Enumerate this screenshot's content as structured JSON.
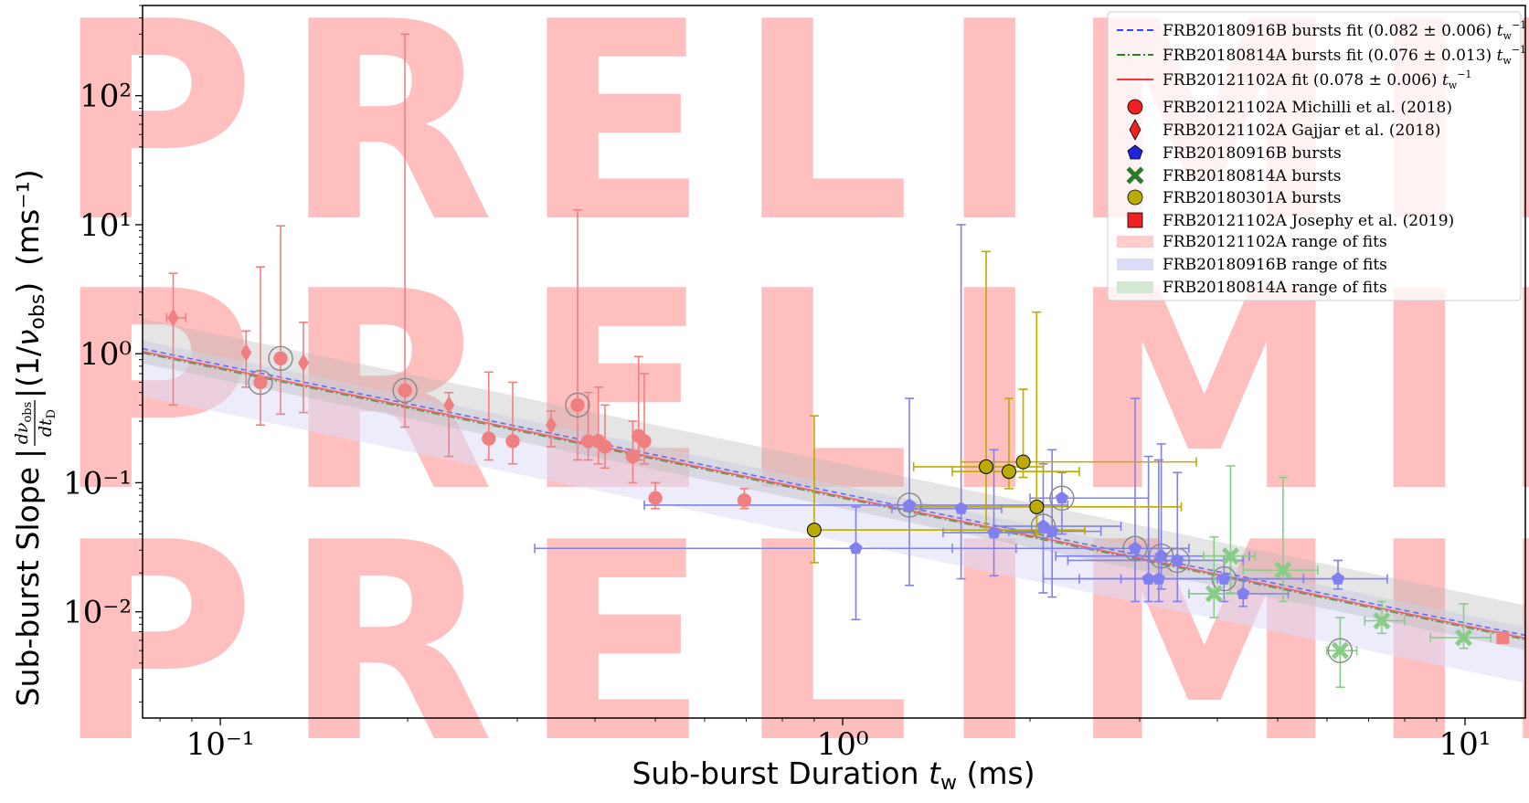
{
  "watermark": {
    "line1": "PRELIMINARY",
    "line2": "PRELIMINARY",
    "line3": "PRELIMINARY"
  },
  "chart_data": {
    "type": "scatter",
    "title": "",
    "xlabel": "Sub-burst Duration t_w (ms)",
    "ylabel": "Sub-burst Slope |dν_obs/dt_D|(1/ν_obs) (ms⁻¹)",
    "xscale": "log",
    "yscale": "log",
    "xlim": [
      0.075,
      12.5
    ],
    "ylim": [
      0.0015,
      500
    ],
    "x_ticks": [
      {
        "value": 0.1,
        "label": "10⁻¹"
      },
      {
        "value": 1,
        "label": "10⁰"
      },
      {
        "value": 10,
        "label": "10¹"
      }
    ],
    "y_ticks": [
      {
        "value": 0.01,
        "label": "10⁻²"
      },
      {
        "value": 0.1,
        "label": "10⁻¹"
      },
      {
        "value": 1,
        "label": "10⁰"
      },
      {
        "value": 10,
        "label": "10¹"
      },
      {
        "value": 100,
        "label": "10²"
      }
    ],
    "grid": false,
    "legend_position": "top-right",
    "colors": {
      "frb121102": "#f08080",
      "frb180916": "#8080ee",
      "frb180814": "#88cc88",
      "frb180301": "#bbaa00",
      "fit121102": "#ff0000",
      "fit180916": "#0000ff",
      "fit180814": "#008000"
    },
    "fits": [
      {
        "name": "FRB20180916B bursts fit (0.082 ± 0.006) t_w⁻¹",
        "coefficient": 0.082,
        "color": "#3344ff",
        "style": "dashed"
      },
      {
        "name": "FRB20180814A bursts fit (0.076 ± 0.013) t_w⁻¹",
        "coefficient": 0.076,
        "color": "#228822",
        "style": "dashdot"
      },
      {
        "name": "FRB20121102A fit (0.078 ± 0.006) t_w⁻¹",
        "coefficient": 0.078,
        "color": "#ff3333",
        "style": "solid"
      }
    ],
    "ranges": [
      {
        "name": "FRB20121102A range of fits",
        "low": 0.074,
        "high": 0.084,
        "color": "#ffcccc"
      },
      {
        "name": "FRB20180916B range of fits",
        "low": 0.035,
        "high": 0.095,
        "color": "#dcdcf8"
      },
      {
        "name": "FRB20180814A range of fits",
        "low": 0.063,
        "high": 0.14,
        "color": "#b4b4b4"
      }
    ],
    "legend_labels": {
      "fit916": "FRB20180916B bursts fit (0.082 ± 0.006) ",
      "fit814": "FRB20180814A bursts fit (0.076 ± 0.013) ",
      "fit121": "FRB20121102A fit (0.078 ± 0.006) ",
      "tw_symbol": "t",
      "tw_sub": "w",
      "tw_sup": "−1",
      "michilli": "FRB20121102A Michilli et al. (2018)",
      "gajjar": "FRB20121102A Gajjar et al. (2018)",
      "b916": "FRB20180916B bursts",
      "b814": "FRB20180814A bursts",
      "b301": "FRB20180301A bursts",
      "josephy": "FRB20121102A Josephy et al. (2019)",
      "range121": "FRB20121102A range of fits",
      "range916": "FRB20180916B range of fits",
      "range814": "FRB20180814A range of fits"
    },
    "axis_text": {
      "x_main": "Sub-burst Duration ",
      "x_sym": "t",
      "x_sub": "w",
      "x_unit": " (ms)",
      "y_main": "Sub-burst Slope ",
      "y_unit": " (ms⁻¹)"
    },
    "series": [
      {
        "name": "FRB20121102A Michilli et al. (2018)",
        "marker": "circle",
        "color": "#f08080",
        "points": [
          {
            "x": 0.116,
            "y": 0.6,
            "ylo": 0.28,
            "yhi": 4.7,
            "circled": true
          },
          {
            "x": 0.125,
            "y": 0.92,
            "ylo": 0.34,
            "yhi": 9.8,
            "circled": true
          },
          {
            "x": 0.198,
            "y": 0.52,
            "ylo": 0.27,
            "yhi": 300,
            "circled": true
          },
          {
            "x": 0.27,
            "y": 0.22,
            "ylo": 0.15,
            "yhi": 0.72
          },
          {
            "x": 0.295,
            "y": 0.21,
            "ylo": 0.14,
            "yhi": 0.6
          },
          {
            "x": 0.375,
            "y": 0.4,
            "ylo": 0.15,
            "yhi": 13,
            "circled": true
          },
          {
            "x": 0.39,
            "y": 0.21,
            "ylo": 0.15,
            "yhi": 0.5
          },
          {
            "x": 0.405,
            "y": 0.21,
            "ylo": 0.14,
            "yhi": 0.55
          },
          {
            "x": 0.415,
            "y": 0.19,
            "ylo": 0.13,
            "yhi": 0.4
          },
          {
            "x": 0.46,
            "y": 0.16,
            "ylo": 0.1,
            "yhi": 0.3
          },
          {
            "x": 0.47,
            "y": 0.23,
            "ylo": 0.15,
            "yhi": 0.95
          },
          {
            "x": 0.48,
            "y": 0.21,
            "ylo": 0.14,
            "yhi": 0.7
          },
          {
            "x": 0.5,
            "y": 0.076,
            "ylo": 0.063,
            "yhi": 0.1
          },
          {
            "x": 0.695,
            "y": 0.073,
            "ylo": 0.063,
            "yhi": 0.09
          }
        ]
      },
      {
        "name": "FRB20121102A Gajjar et al. (2018)",
        "marker": "diamond",
        "color": "#f08080",
        "points": [
          {
            "x": 0.084,
            "y": 1.9,
            "ylo": 0.4,
            "yhi": 4.2,
            "xlo": 0.082,
            "xhi": 0.088
          },
          {
            "x": 0.11,
            "y": 1.02,
            "ylo": 0.55,
            "yhi": 1.5
          },
          {
            "x": 0.136,
            "y": 0.85,
            "ylo": 0.35,
            "yhi": 1.75
          },
          {
            "x": 0.233,
            "y": 0.4,
            "ylo": 0.16,
            "yhi": 0.5
          },
          {
            "x": 0.34,
            "y": 0.28,
            "ylo": 0.19,
            "yhi": 0.36
          }
        ]
      },
      {
        "name": "FRB20180916B bursts",
        "marker": "pentagon",
        "color": "#8080ee",
        "points": [
          {
            "x": 1.05,
            "y": 0.031,
            "ylo": 0.0087,
            "yhi": 0.065,
            "xlo": 0.32,
            "xhi": 1.9
          },
          {
            "x": 1.28,
            "y": 0.067,
            "ylo": 0.016,
            "yhi": 0.45,
            "xlo": 0.48,
            "xhi": 2.3,
            "circled": true
          },
          {
            "x": 1.55,
            "y": 0.063,
            "ylo": 0.018,
            "yhi": 10,
            "xlo": 1.2,
            "xhi": 1.8
          },
          {
            "x": 1.75,
            "y": 0.041,
            "ylo": 0.019,
            "yhi": 0.18,
            "xlo": 1.45,
            "xhi": 2.2
          },
          {
            "x": 2.1,
            "y": 0.046,
            "ylo": 0.014,
            "yhi": 0.14,
            "xlo": 1.75,
            "xhi": 2.8,
            "circled": true
          },
          {
            "x": 2.17,
            "y": 0.042,
            "ylo": 0.013,
            "yhi": 0.18,
            "xlo": 1.85,
            "xhi": 2.6
          },
          {
            "x": 2.25,
            "y": 0.076,
            "ylo": 0.04,
            "yhi": 0.12,
            "xlo": 2.0,
            "xhi": 3.1,
            "circled": true
          },
          {
            "x": 2.95,
            "y": 0.031,
            "ylo": 0.012,
            "yhi": 0.45,
            "xlo": 1.5,
            "xhi": 3.6,
            "circled": true
          },
          {
            "x": 3.1,
            "y": 0.018,
            "ylo": 0.012,
            "yhi": 0.16,
            "xlo": 2.1,
            "xhi": 4.0
          },
          {
            "x": 3.22,
            "y": 0.018,
            "ylo": 0.012,
            "yhi": 0.15,
            "xlo": 2.4,
            "xhi": 4.1
          },
          {
            "x": 3.25,
            "y": 0.027,
            "ylo": 0.015,
            "yhi": 0.2,
            "xlo": 2.2,
            "xhi": 4.5,
            "circled": true
          },
          {
            "x": 3.45,
            "y": 0.025,
            "ylo": 0.012,
            "yhi": 0.12,
            "xlo": 2.3,
            "xhi": 4.4,
            "circled": true
          },
          {
            "x": 4.1,
            "y": 0.018,
            "ylo": 0.012,
            "yhi": 0.027,
            "xlo": 2.8,
            "xhi": 5.5,
            "circled": true
          },
          {
            "x": 4.4,
            "y": 0.0138,
            "ylo": 0.011,
            "yhi": 0.018,
            "xlo": 3.6,
            "xhi": 5.2
          },
          {
            "x": 6.25,
            "y": 0.018,
            "ylo": 0.015,
            "yhi": 0.025,
            "xlo": 4.2,
            "xhi": 7.5
          }
        ]
      },
      {
        "name": "FRB20180814A bursts",
        "marker": "x",
        "color": "#88cc88",
        "points": [
          {
            "x": 3.95,
            "y": 0.0138,
            "ylo": 0.009,
            "yhi": 0.038,
            "xlo": 3.6,
            "xhi": 4.4
          },
          {
            "x": 4.2,
            "y": 0.027,
            "ylo": 0.014,
            "yhi": 0.135,
            "xlo": 3.8,
            "xhi": 4.6
          },
          {
            "x": 5.1,
            "y": 0.021,
            "ylo": 0.012,
            "yhi": 0.11,
            "xlo": 4.4,
            "xhi": 5.8
          },
          {
            "x": 6.3,
            "y": 0.005,
            "ylo": 0.0026,
            "yhi": 0.009,
            "xlo": 6.0,
            "xhi": 6.7,
            "circled": true
          },
          {
            "x": 7.35,
            "y": 0.0085,
            "ylo": 0.0068,
            "yhi": 0.012,
            "xlo": 6.9,
            "xhi": 8.0
          },
          {
            "x": 9.95,
            "y": 0.0063,
            "ylo": 0.0052,
            "yhi": 0.0115,
            "xlo": 8.8,
            "xhi": 11.0
          }
        ]
      },
      {
        "name": "FRB20180301A bursts",
        "marker": "circle",
        "color": "#bbaa00",
        "points": [
          {
            "x": 0.9,
            "y": 0.043,
            "ylo": 0.024,
            "yhi": 0.33,
            "xlo": 0.9,
            "xhi": 2.45
          },
          {
            "x": 1.7,
            "y": 0.133,
            "ylo": 0.045,
            "yhi": 6.2,
            "xlo": 1.3,
            "xhi": 2.1
          },
          {
            "x": 1.85,
            "y": 0.122,
            "ylo": 0.09,
            "yhi": 0.45,
            "xlo": 1.5,
            "xhi": 2.4
          },
          {
            "x": 1.95,
            "y": 0.145,
            "ylo": 0.11,
            "yhi": 0.53,
            "xlo": 1.55,
            "xhi": 3.7
          },
          {
            "x": 2.05,
            "y": 0.065,
            "ylo": 0.04,
            "yhi": 2.1,
            "xlo": 1.3,
            "xhi": 3.5
          }
        ]
      },
      {
        "name": "FRB20121102A Josephy et al. (2019)",
        "marker": "square",
        "color": "#f08080",
        "points": [
          {
            "x": 11.5,
            "y": 0.0063
          }
        ]
      }
    ]
  }
}
